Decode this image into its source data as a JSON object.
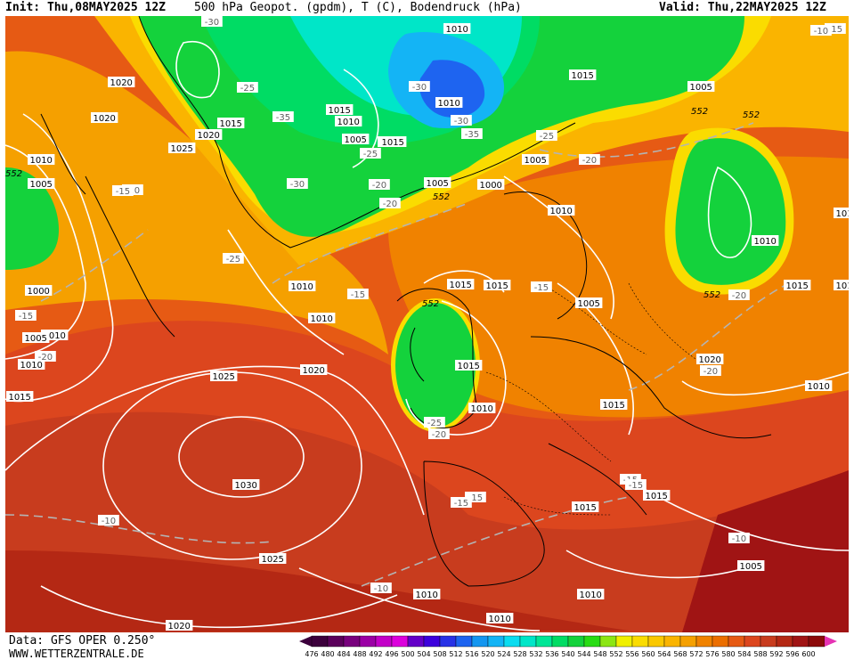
{
  "header": {
    "init_text": "Init: Thu,08MAY2025 12Z",
    "title_text": "500 hPa Geopot. (gpdm), T (C), Bodendruck (hPa)",
    "valid_text": "Valid: Thu,22MAY2025 12Z"
  },
  "footer": {
    "source_text": "Data: GFS OPER 0.250°",
    "site_text": "WWW.WETTERZENTRALE.DE"
  },
  "legend": {
    "values": [
      "476",
      "480",
      "484",
      "488",
      "492",
      "496",
      "500",
      "504",
      "508",
      "512",
      "516",
      "520",
      "524",
      "528",
      "532",
      "536",
      "540",
      "544",
      "548",
      "552",
      "556",
      "560",
      "564",
      "568",
      "572",
      "576",
      "580",
      "584",
      "588",
      "592",
      "596",
      "600"
    ],
    "colors": [
      "#3c003c",
      "#5a005a",
      "#78007d",
      "#9b00a5",
      "#c300c8",
      "#dc00dc",
      "#6400c8",
      "#3c00dc",
      "#2832e6",
      "#1e64f0",
      "#1496f0",
      "#14b4f5",
      "#0adcf0",
      "#00e6c8",
      "#00e696",
      "#00dc64",
      "#14d23c",
      "#28dc14",
      "#8ce614",
      "#f0f000",
      "#fadc00",
      "#fac800",
      "#fab400",
      "#f5a000",
      "#f08200",
      "#eb6e00",
      "#e65a14",
      "#dc461e",
      "#c83c1e",
      "#b42814",
      "#a01414",
      "#8c0a0a"
    ]
  },
  "map": {
    "background_color": "#e8440f",
    "pressure_labels": [
      "1005",
      "1010",
      "1000",
      "1010",
      "1020",
      "1020",
      "1025",
      "1020",
      "1015",
      "1015",
      "1010",
      "1005",
      "1015",
      "1010",
      "1015",
      "1010",
      "1010",
      "1010",
      "1005",
      "1000",
      "1005",
      "1010",
      "1015",
      "1015",
      "1015",
      "1010",
      "1005",
      "1015",
      "1020",
      "1010",
      "1015",
      "1010",
      "1005",
      "1010",
      "1010",
      "1005",
      "1015",
      "1020",
      "1025",
      "1030",
      "1025",
      "1020",
      "1015",
      "1015",
      "1010",
      "1010",
      "1010",
      "1005",
      "1010",
      "1015"
    ],
    "temperature_labels": [
      "-30",
      "-25",
      "-35",
      "-30",
      "-25",
      "-30",
      "-30",
      "-35",
      "-25",
      "-20",
      "-25",
      "-20",
      "-20",
      "-25",
      "-20",
      "-15",
      "-15",
      "-20",
      "-15",
      "-20",
      "-15",
      "-10",
      "-10",
      "-15",
      "-10",
      "-15",
      "-15",
      "-15",
      "-15",
      "-10",
      "-20",
      "-20"
    ],
    "geopot_labels": [
      "552",
      "552",
      "552",
      "552",
      "552",
      "552"
    ]
  }
}
